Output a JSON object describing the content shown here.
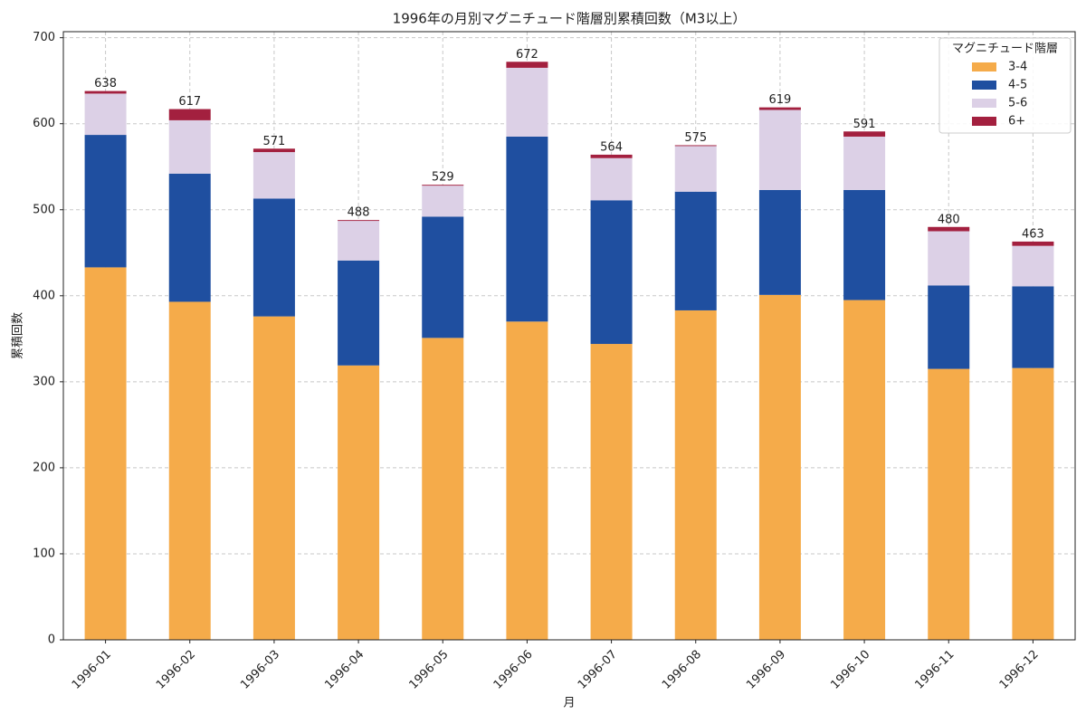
{
  "chart_data": {
    "type": "stacked_bar",
    "title": "1996年の月別マグニチュード階層別累積回数（M3以上）",
    "x_label": "月",
    "y_label": "累積回数",
    "categories": [
      "1996-01",
      "1996-02",
      "1996-03",
      "1996-04",
      "1996-05",
      "1996-06",
      "1996-07",
      "1996-08",
      "1996-09",
      "1996-10",
      "1996-11",
      "1996-12"
    ],
    "series": [
      {
        "name": "3-4",
        "color": "#f5ab4a",
        "values": [
          433,
          393,
          376,
          319,
          351,
          370,
          344,
          383,
          401,
          395,
          315,
          316
        ]
      },
      {
        "name": "4-5",
        "color": "#1f4fa0",
        "values": [
          154,
          149,
          137,
          122,
          141,
          215,
          167,
          138,
          122,
          128,
          97,
          95
        ]
      },
      {
        "name": "5-6",
        "color": "#dcd0e6",
        "values": [
          48,
          62,
          54,
          46,
          36,
          80,
          49,
          53,
          93,
          62,
          63,
          47
        ]
      },
      {
        "name": "6+",
        "color": "#a3203f",
        "values": [
          3,
          13,
          4,
          1,
          1,
          7,
          4,
          1,
          3,
          6,
          5,
          5
        ]
      }
    ],
    "totals": [
      638,
      617,
      571,
      488,
      529,
      672,
      564,
      575,
      619,
      591,
      480,
      463
    ],
    "legend_title": "マグニチュード階層",
    "legend_position": "upper right",
    "ylim": [
      0,
      707
    ],
    "yticks": [
      0,
      100,
      200,
      300,
      400,
      500,
      600,
      700
    ],
    "grid": true
  }
}
